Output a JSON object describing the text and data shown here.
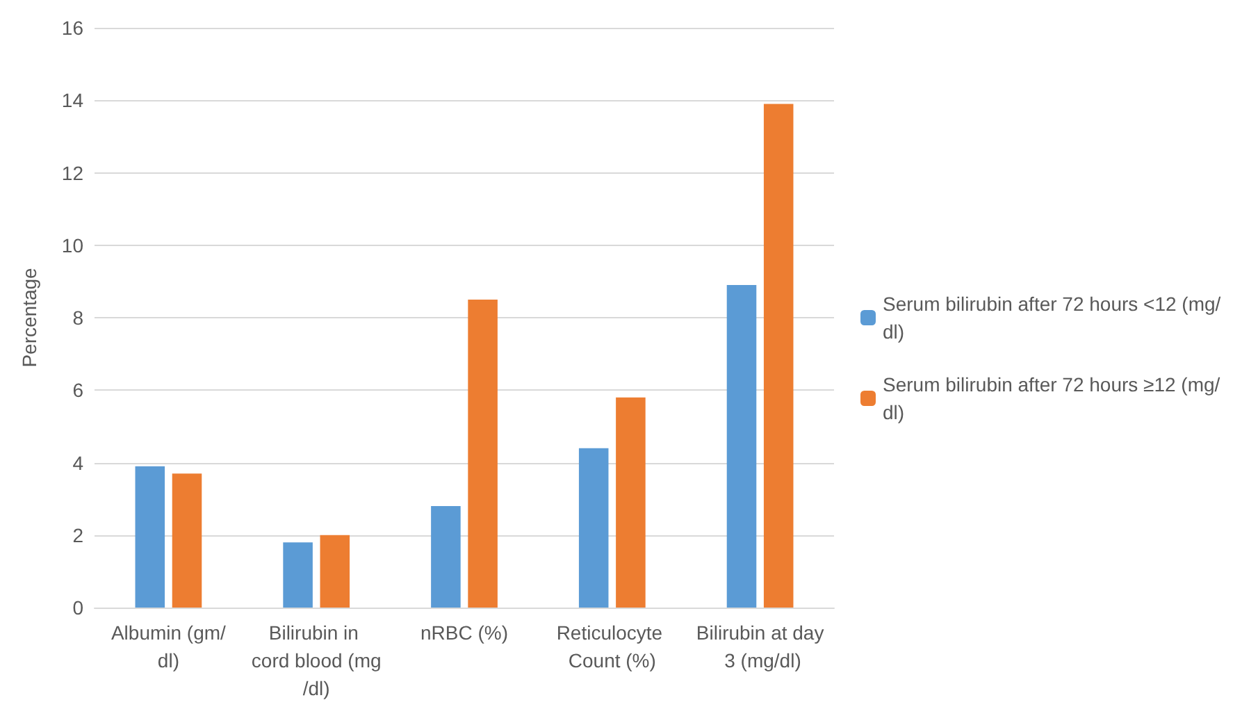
{
  "chart_data": {
    "type": "bar",
    "ylabel": "Percentage",
    "categories": [
      "Albumin (gm/dl)",
      "Bilirubin in cord blood (mg/dl)",
      "nRBC (%)",
      "Reticulocyte Count (%)",
      "Bilirubin at day 3 (mg/dl)"
    ],
    "series": [
      {
        "name": "Serum bilirubin after 72 hours <12 (mg/dl)",
        "color": "#5b9bd5",
        "values": [
          3.9,
          1.8,
          2.8,
          4.4,
          8.9
        ]
      },
      {
        "name": "Serum bilirubin after 72 hours ≥12 (mg/dl)",
        "color": "#ed7d31",
        "values": [
          3.7,
          2.0,
          8.5,
          5.8,
          13.9
        ]
      }
    ],
    "ylim": [
      0,
      16
    ],
    "yticks": [
      0,
      2,
      4,
      6,
      8,
      10,
      12,
      14,
      16
    ],
    "grid": "y",
    "legend": "right"
  }
}
